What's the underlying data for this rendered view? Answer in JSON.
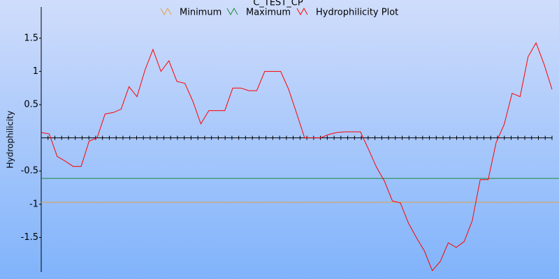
{
  "chart_data": {
    "type": "line",
    "title": "C_TEST_CP",
    "y_label": "Hydrophilicity",
    "series": [
      {
        "name": "Minimum",
        "color": "#e0a040",
        "values": [
          -0.97
        ]
      },
      {
        "name": "Maximum",
        "color": "#1a8a3a",
        "values": [
          -0.61
        ]
      },
      {
        "name": "Hydrophilicity Plot",
        "color": "#ff0000",
        "values": [
          0.08,
          0.06,
          -0.28,
          -0.35,
          -0.43,
          -0.43,
          -0.05,
          0,
          0.36,
          0.38,
          0.43,
          0.77,
          0.62,
          1.02,
          1.33,
          1.0,
          1.16,
          0.85,
          0.82,
          0.55,
          0.21,
          0.41,
          0.41,
          0.41,
          0.75,
          0.75,
          0.71,
          0.71,
          1.0,
          1.0,
          1.0,
          0.73,
          0.37,
          0,
          0,
          0,
          0.05,
          0.08,
          0.09,
          0.09,
          0.09,
          -0.17,
          -0.44,
          -0.65,
          -0.95,
          -0.98,
          -1.28,
          -1.5,
          -1.7,
          -2.0,
          -1.86,
          -1.58,
          -1.65,
          -1.56,
          -1.25,
          -0.63,
          -0.63,
          -0.07,
          0.2,
          0.67,
          0.62,
          1.22,
          1.43,
          1.11,
          0.73
        ]
      }
    ],
    "ylim": [
      -2.02,
      1.97
    ],
    "yticks": [
      -1.5,
      -1,
      -0.5,
      0.5,
      1,
      1.5
    ]
  }
}
